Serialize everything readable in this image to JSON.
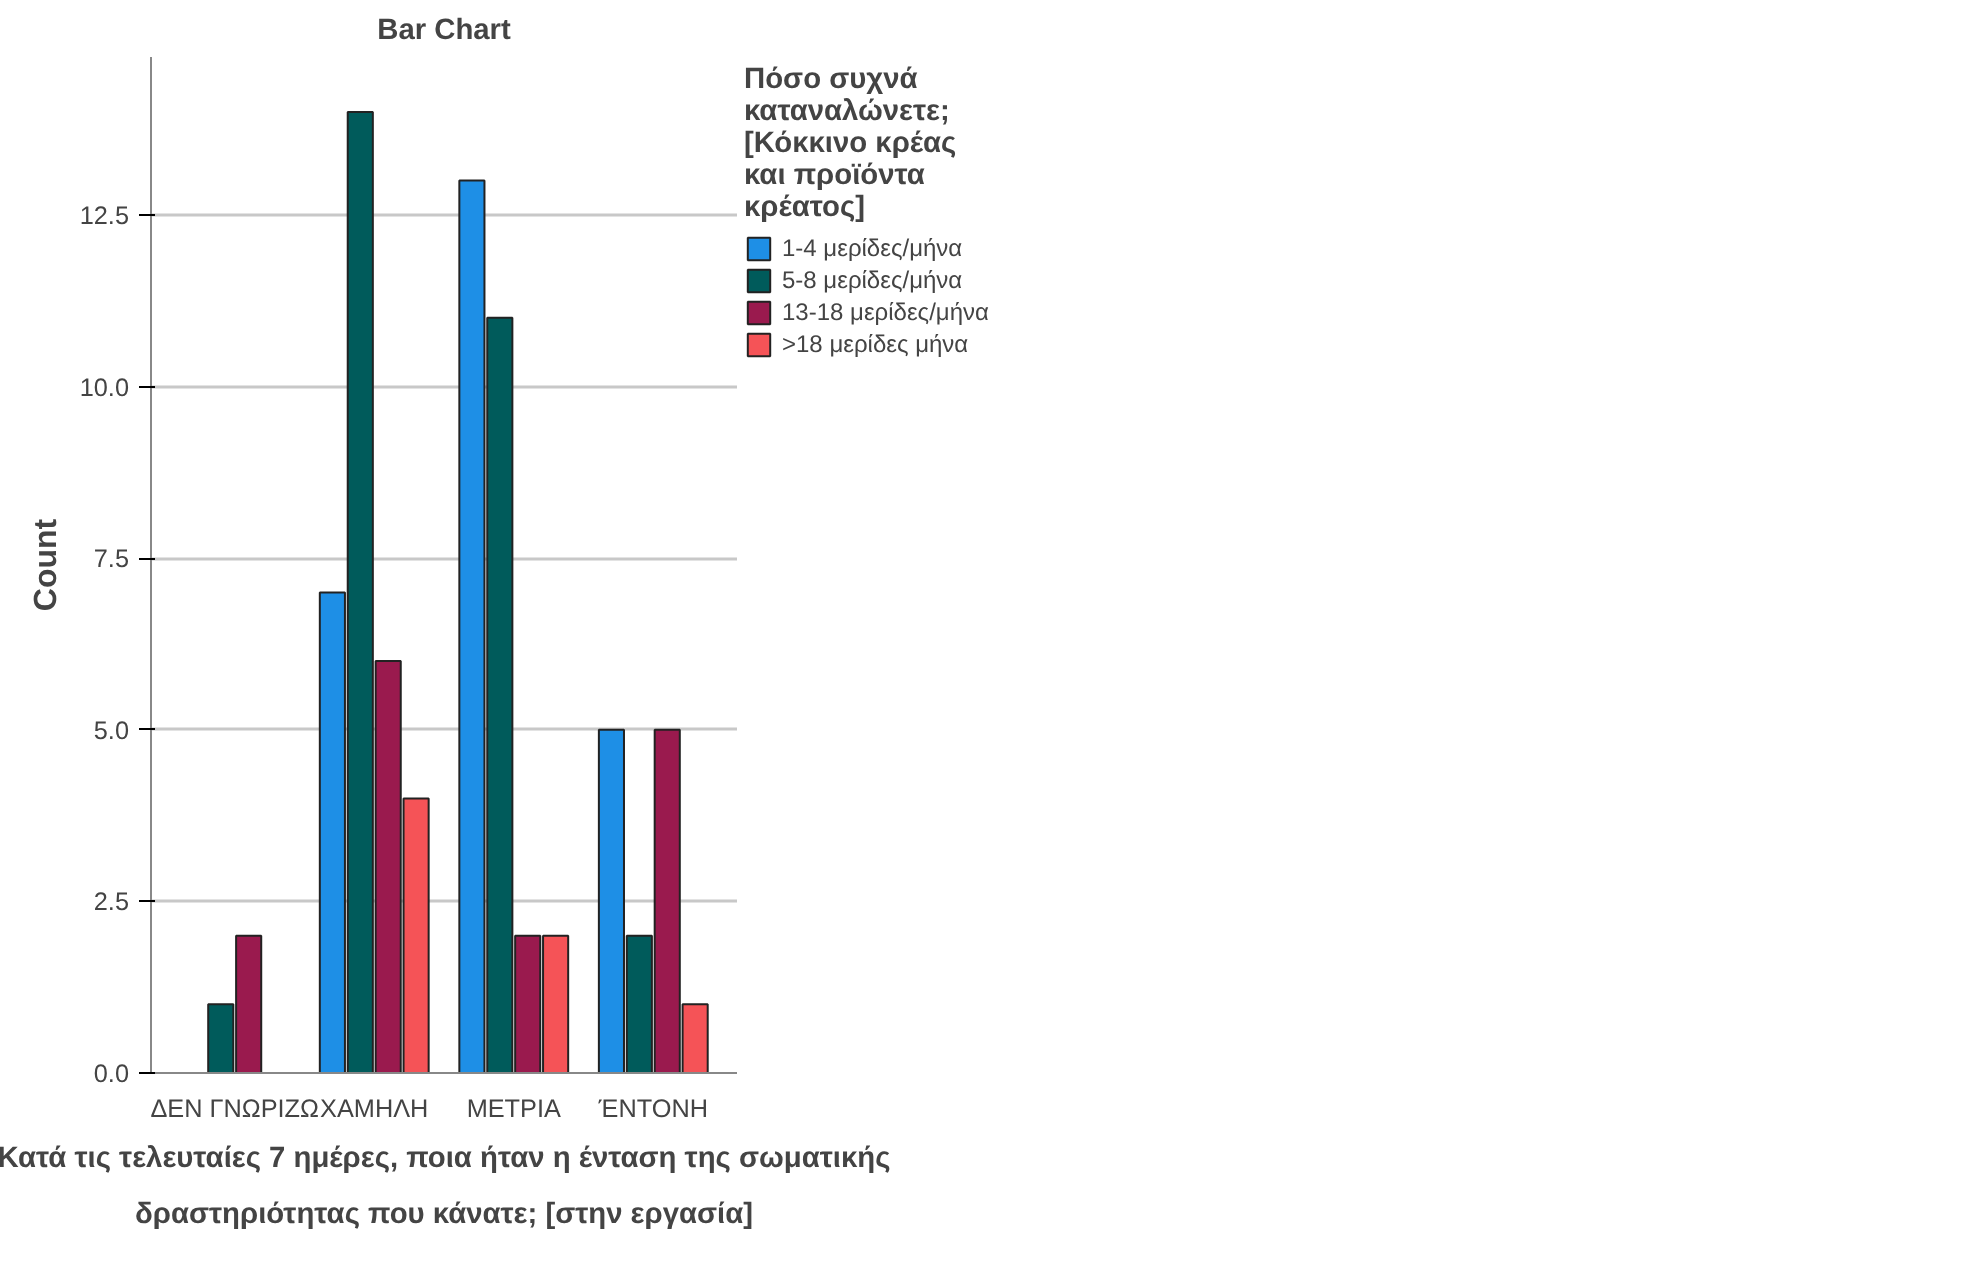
{
  "chart_data": {
    "type": "bar",
    "title": "Bar Chart",
    "xlabel": "Κατά τις τελευταίες 7 ημέρες, ποια ήταν η ένταση της σωματικής δραστηριότητας που κάνατε; [στην εργασία]",
    "ylabel": "Count",
    "legend_title": "Πόσο συχνά καταναλώνετε; [Κόκκινο κρέας και προϊόντα κρέατος]",
    "categories": [
      "ΔΕΝ ΓΝΩΡΙΖΩ",
      "ΧΑΜΗΛΗ",
      "ΜΕΤΡΙΑ",
      "ΈΝΤΟΝΗ"
    ],
    "series": [
      {
        "name": "1-4 μερίδες/μήνα",
        "color": "#1e8fe6",
        "values": [
          null,
          7,
          13,
          5
        ]
      },
      {
        "name": "5-8 μερίδες/μήνα",
        "color": "#005b5b",
        "values": [
          1,
          14,
          11,
          2
        ]
      },
      {
        "name": "13-18 μερίδες/μήνα",
        "color": "#9a1a4e",
        "values": [
          2,
          6,
          2,
          5
        ]
      },
      {
        "name": ">18 μερίδες μήνα",
        "color": "#f55357",
        "values": [
          null,
          4,
          2,
          1
        ]
      }
    ],
    "ylim": [
      0,
      14.8
    ],
    "yticks": [
      {
        "value": 0,
        "label": "0.0"
      },
      {
        "value": 2.5,
        "label": "2.5"
      },
      {
        "value": 5,
        "label": "5.0"
      },
      {
        "value": 7.5,
        "label": "7.5"
      },
      {
        "value": 10,
        "label": "10.0"
      },
      {
        "value": 12.5,
        "label": "12.5"
      }
    ],
    "grid": "y",
    "legend": "right"
  }
}
